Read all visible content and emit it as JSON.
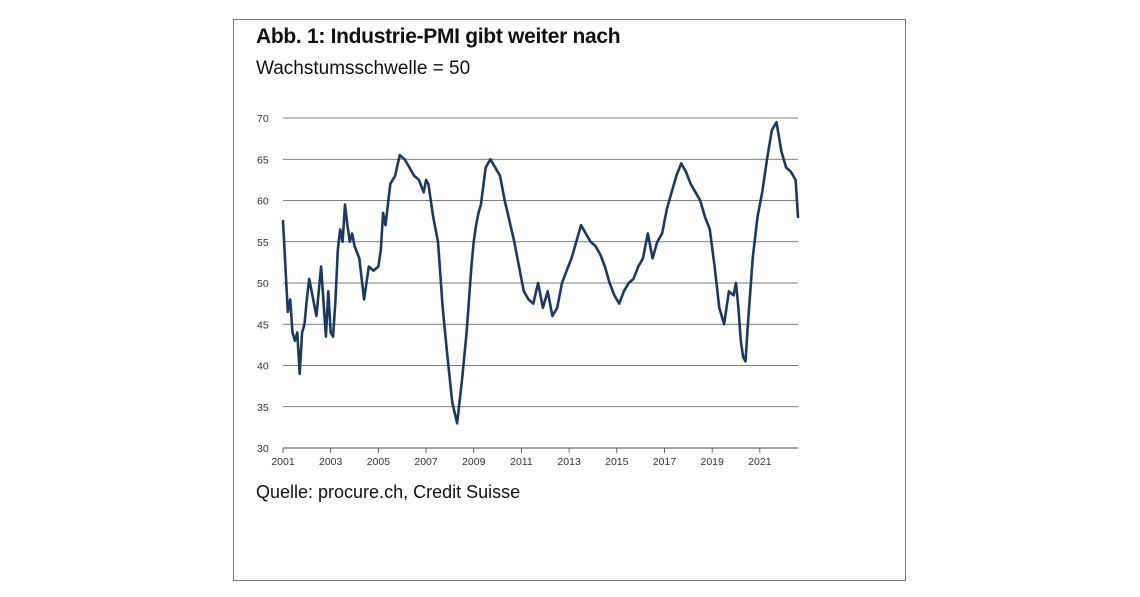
{
  "figure": {
    "title": "Abb. 1: Industrie-PMI gibt weiter nach",
    "subtitle": "Wachstumsschwelle = 50",
    "source": "Quelle: procure.ch, Credit Suisse"
  },
  "chart_data": {
    "type": "line",
    "title": "Abb. 1: Industrie-PMI gibt weiter nach",
    "subtitle": "Wachstumsschwelle = 50",
    "xlabel": "",
    "ylabel": "",
    "ylim": [
      30,
      70
    ],
    "xlim": [
      2001.0,
      2022.6
    ],
    "y_ticks": [
      "30",
      "35",
      "40",
      "45",
      "50",
      "55",
      "60",
      "65",
      "70"
    ],
    "x_ticks": [
      "2001",
      "2003",
      "2005",
      "2007",
      "2009",
      "2011",
      "2013",
      "2015",
      "2017",
      "2019",
      "2021"
    ],
    "grid": "horizontal",
    "line_color": "#1b3a63",
    "series": [
      {
        "x": [
          2001.0,
          2001.1,
          2001.2,
          2001.3,
          2001.4,
          2001.5,
          2001.6,
          2001.7,
          2001.8,
          2001.9,
          2002.0,
          2002.1,
          2002.2,
          2002.4,
          2002.6,
          2002.8,
          2002.9,
          2003.0,
          2003.1,
          2003.2,
          2003.3,
          2003.4,
          2003.5,
          2003.6,
          2003.7,
          2003.8,
          2003.9,
          2004.0,
          2004.2,
          2004.4,
          2004.6,
          2004.8,
          2005.0,
          2005.1,
          2005.2,
          2005.3,
          2005.5,
          2005.7,
          2005.9,
          2006.1,
          2006.3,
          2006.5,
          2006.7,
          2006.9,
          2007.0,
          2007.1,
          2007.3,
          2007.5,
          2007.7,
          2007.9,
          2008.1,
          2008.3,
          2008.5,
          2008.7,
          2008.9,
          2009.0,
          2009.1,
          2009.2,
          2009.3,
          2009.5,
          2009.7,
          2009.9,
          2010.1,
          2010.3,
          2010.5,
          2010.7,
          2010.9,
          2011.1,
          2011.3,
          2011.5,
          2011.7,
          2011.9,
          2012.1,
          2012.3,
          2012.5,
          2012.7,
          2012.9,
          2013.1,
          2013.3,
          2013.5,
          2013.7,
          2013.9,
          2014.1,
          2014.3,
          2014.5,
          2014.7,
          2014.9,
          2015.1,
          2015.3,
          2015.5,
          2015.7,
          2015.9,
          2016.1,
          2016.3,
          2016.5,
          2016.7,
          2016.9,
          2017.1,
          2017.3,
          2017.5,
          2017.7,
          2017.9,
          2018.1,
          2018.3,
          2018.5,
          2018.7,
          2018.9,
          2019.1,
          2019.3,
          2019.5,
          2019.7,
          2019.9,
          2020.0,
          2020.1,
          2020.2,
          2020.3,
          2020.4,
          2020.5,
          2020.7,
          2020.9,
          2021.1,
          2021.3,
          2021.5,
          2021.7,
          2021.9,
          2022.1,
          2022.3,
          2022.5,
          2022.6
        ],
        "values": [
          57.5,
          52,
          46.5,
          48,
          44,
          43,
          44,
          39,
          44,
          45,
          48,
          50.5,
          49,
          46,
          52,
          43.5,
          49,
          44,
          43.5,
          48,
          54,
          56.5,
          55,
          59.5,
          57,
          55,
          56,
          54.5,
          53,
          48,
          52,
          51.5,
          52,
          54,
          58.5,
          57,
          62,
          63,
          65.5,
          65,
          64,
          63,
          62.5,
          61,
          62.5,
          62,
          58,
          55,
          47,
          41,
          35.5,
          33,
          38,
          44,
          52,
          55,
          57,
          58.5,
          59.5,
          64,
          65,
          64,
          63,
          60,
          57.5,
          55,
          52,
          49,
          48,
          47.5,
          50,
          47,
          49,
          46,
          47,
          50,
          51.5,
          53,
          55,
          57,
          56,
          55,
          54.5,
          53.5,
          52,
          50,
          48.5,
          47.5,
          49,
          50,
          50.5,
          52,
          53,
          56,
          53,
          55,
          56,
          59,
          61,
          63,
          64.5,
          63.5,
          62,
          61,
          60,
          58,
          56.5,
          52,
          47,
          45,
          49,
          48.5,
          50,
          47,
          43,
          41,
          40.5,
          45,
          53,
          58,
          61,
          65,
          68.5,
          69.5,
          66,
          64,
          63.5,
          62.5,
          58
        ]
      }
    ]
  }
}
